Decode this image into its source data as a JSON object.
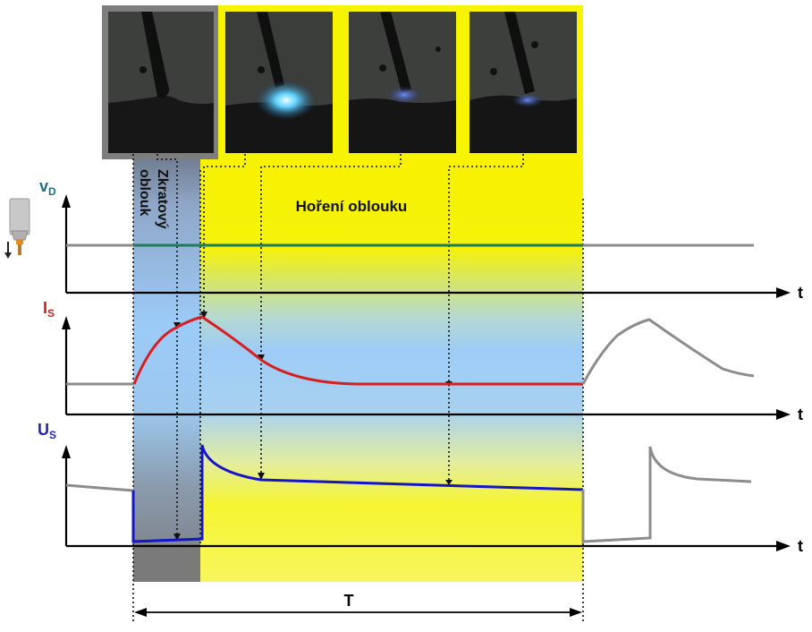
{
  "colors": {
    "yellow": "#f6f400",
    "blue": "#9ccbf8",
    "dark_gray": "#7a7a7a",
    "photo_bg": "#3a3d3a",
    "feed_line": "#1d7a5a",
    "current_line": "#d81e1e",
    "voltage_line": "#1414c8",
    "ghost_line": "#8c8c8c",
    "label_vd": "#1a6f84",
    "label_is": "#d01f1f",
    "label_us": "#2323b4"
  },
  "labels": {
    "vd": "v",
    "vd_sub": "D",
    "is": "I",
    "is_sub": "S",
    "us": "U",
    "us_sub": "S",
    "t1": "t",
    "t2": "t",
    "t3": "t",
    "period": "T",
    "short_arc_line1": "Zkratový",
    "short_arc_line2": "oblouk",
    "arc_burning": "Hoření oblouku"
  },
  "icons": {
    "torch": "welding-torch-icon",
    "feed_arrow": "arrow-down-icon"
  }
}
